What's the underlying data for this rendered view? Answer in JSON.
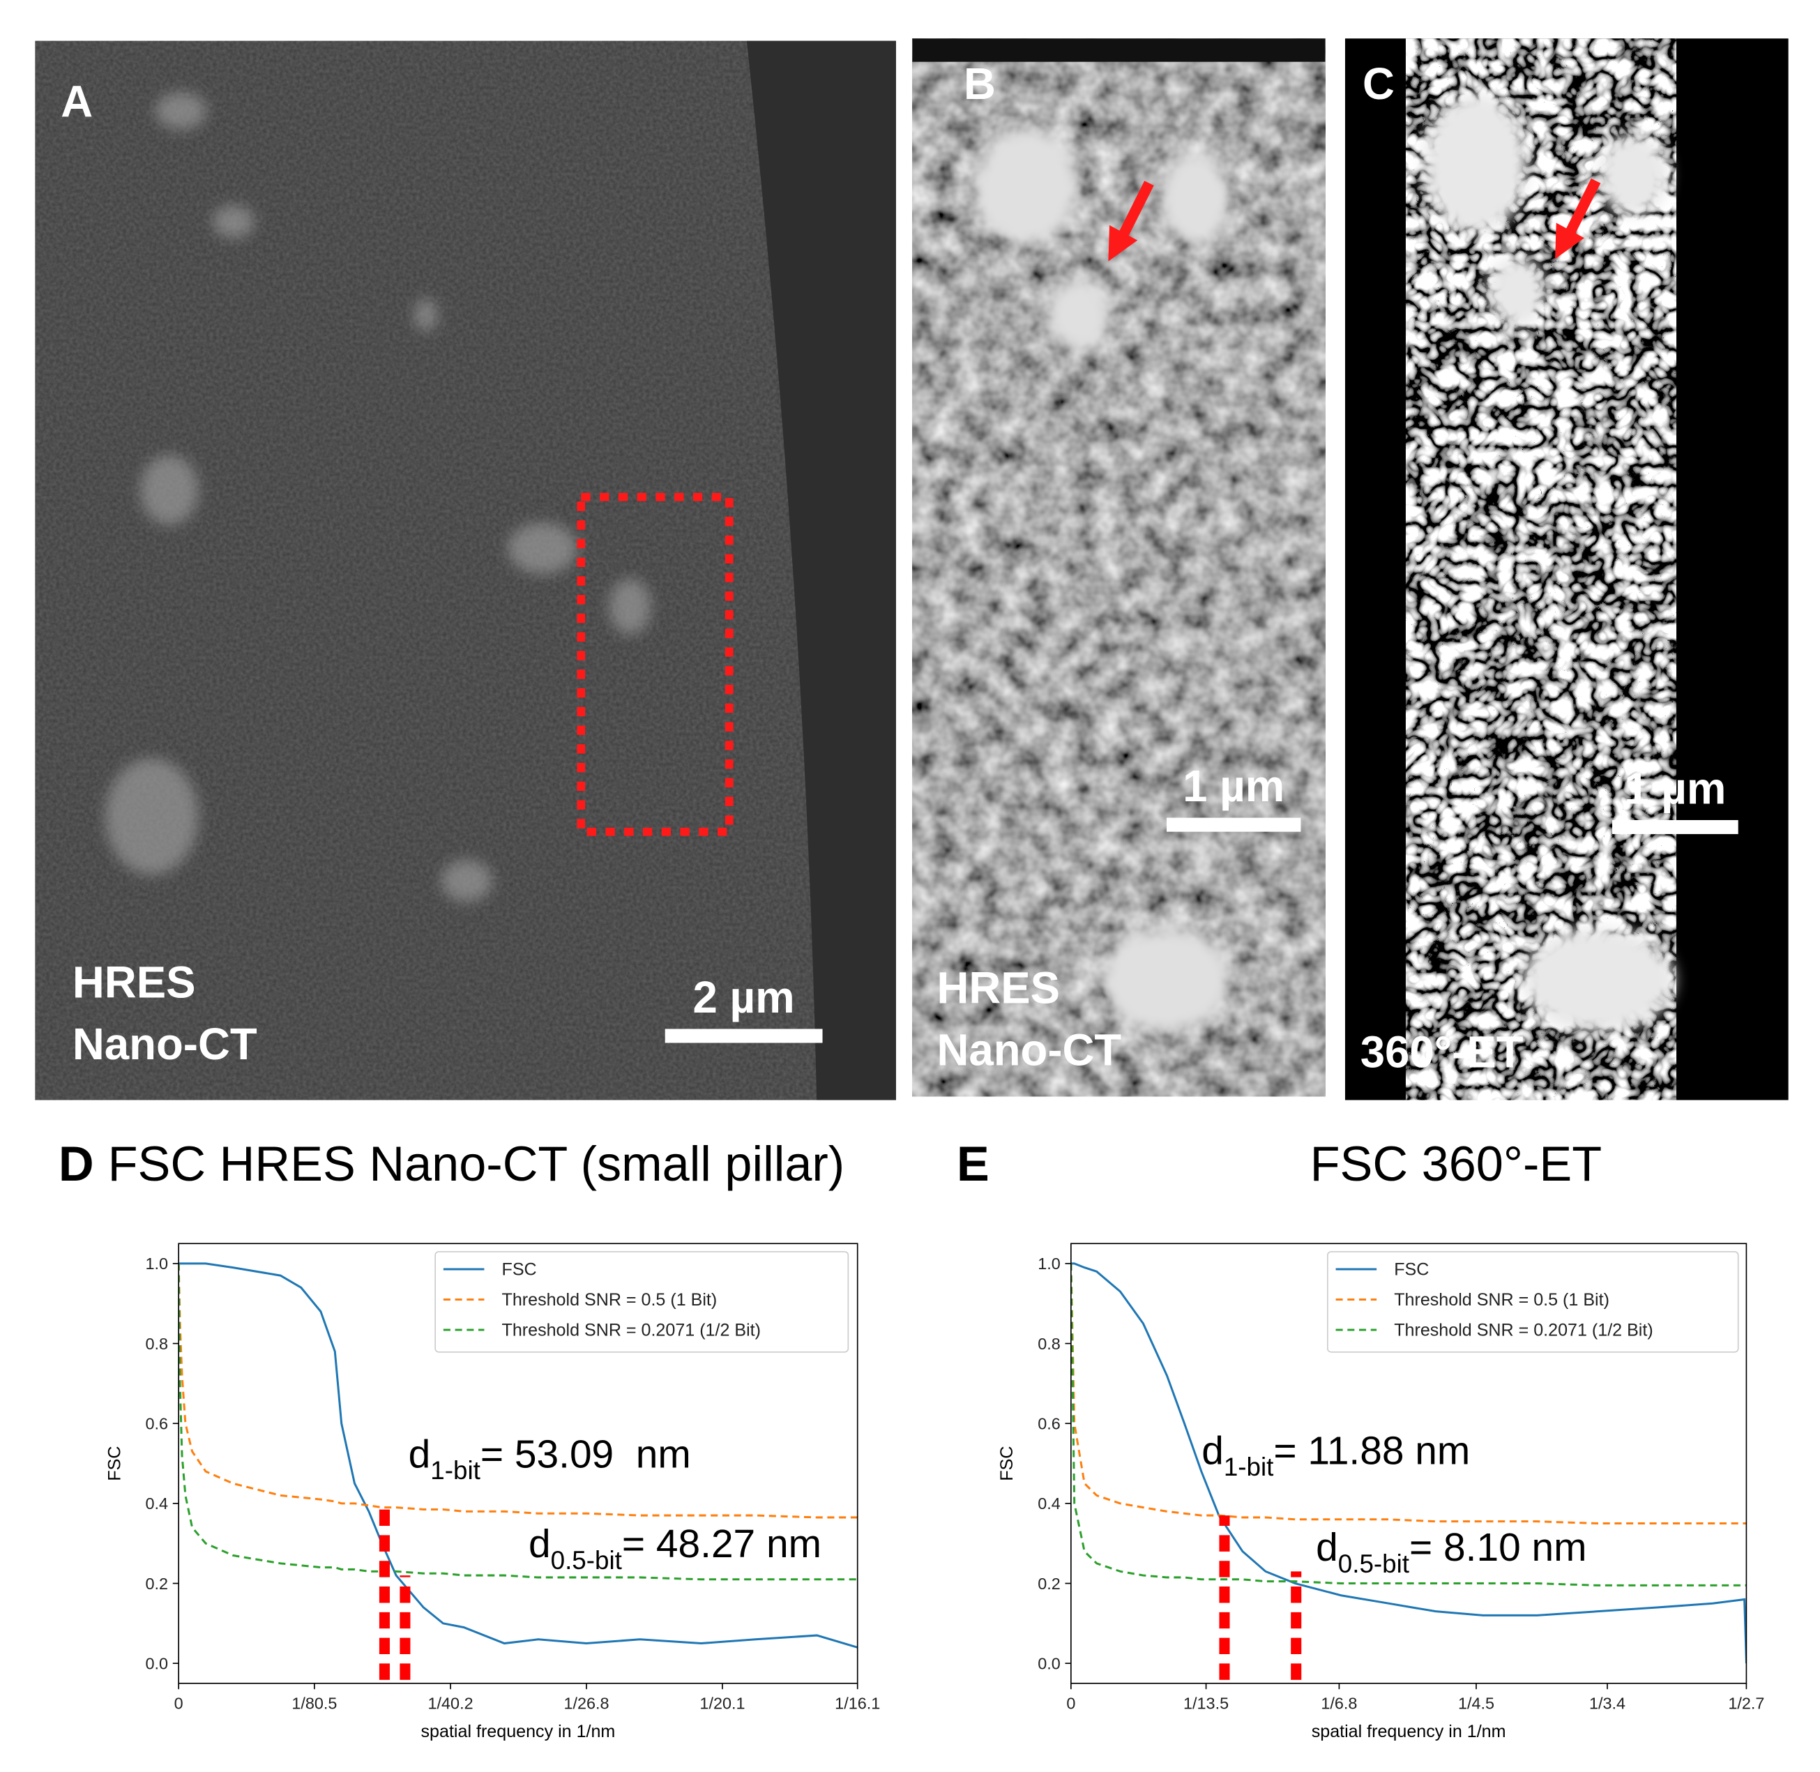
{
  "panels": [
    {
      "label": "A",
      "captions": [
        "HRES",
        "Nano-CT"
      ],
      "scale_bar": "2 µm"
    },
    {
      "label": "B",
      "captions": [
        "HRES",
        "Nano-CT"
      ],
      "scale_bar": "1 µm"
    },
    {
      "label": "C",
      "captions": [
        "360°-ET"
      ],
      "scale_bar": "1 µm"
    }
  ],
  "chart_data": [
    {
      "type": "line",
      "label": "D",
      "title": "FSC HRES Nano-CT (small pillar)",
      "x_label": "spatial frequency in 1/nm",
      "y_label": "FSC",
      "x": [
        0,
        0.000124,
        0.000311,
        0.000621,
        0.00124,
        0.00248,
        0.00497,
        0.00932,
        0.0112,
        0.013,
        0.0143,
        0.0149,
        0.0161,
        0.0174,
        0.0186,
        0.0199,
        0.0224,
        0.0242,
        0.0261,
        0.0298,
        0.0329,
        0.0373,
        0.0422,
        0.0478,
        0.0528,
        0.0584,
        0.0621
      ],
      "series": [
        {
          "name": "FSC",
          "color": "#1f77b4",
          "dashed": false,
          "values": [
            1.0,
            1.0,
            1.0,
            1.0,
            1.0,
            1.0,
            0.99,
            0.97,
            0.94,
            0.88,
            0.78,
            0.6,
            0.45,
            0.38,
            0.3,
            0.22,
            0.14,
            0.1,
            0.09,
            0.05,
            0.06,
            0.05,
            0.06,
            0.05,
            0.06,
            0.07,
            0.04
          ]
        },
        {
          "name": "Threshold SNR = 0.5 (1 Bit)",
          "color": "#ff7f0e",
          "dashed": true,
          "values": [
            1.0,
            0.85,
            0.72,
            0.6,
            0.53,
            0.48,
            0.45,
            0.42,
            0.415,
            0.41,
            0.405,
            0.4,
            0.4,
            0.395,
            0.39,
            0.39,
            0.385,
            0.385,
            0.38,
            0.38,
            0.375,
            0.375,
            0.37,
            0.37,
            0.37,
            0.365,
            0.365
          ]
        },
        {
          "name": "Threshold SNR = 0.2071 (1/2 Bit)",
          "color": "#2ca02c",
          "dashed": true,
          "values": [
            1.0,
            0.7,
            0.52,
            0.42,
            0.34,
            0.3,
            0.27,
            0.25,
            0.245,
            0.24,
            0.24,
            0.235,
            0.235,
            0.23,
            0.23,
            0.23,
            0.225,
            0.225,
            0.22,
            0.22,
            0.215,
            0.215,
            0.215,
            0.21,
            0.21,
            0.21,
            0.21
          ]
        }
      ],
      "cutoffs": [
        {
          "x": 0.01884,
          "y": 0.39
        },
        {
          "x": 0.02072,
          "y": 0.22
        }
      ],
      "cutoff_color": "#ff0000",
      "annotations": [
        {
          "symbol": "d",
          "subscript": "1-bit",
          "text": "= 53.09  nm"
        },
        {
          "symbol": "d",
          "subscript": "0.5-bit",
          "text": "= 48.27 nm"
        }
      ],
      "xlim": [
        0,
        0.062112
      ],
      "xticks": [
        0,
        {
          "value": 0.012422,
          "label": "1/80.5"
        },
        {
          "value": 0.024876,
          "label": "1/40.2"
        },
        {
          "value": 0.037313,
          "label": "1/26.8"
        },
        {
          "value": 0.049751,
          "label": "1/20.1"
        },
        {
          "value": 0.062112,
          "label": "1/16.1"
        }
      ],
      "ylim": [
        -0.05,
        1.05
      ],
      "yticks": [
        {
          "value": 0,
          "label": "0.0"
        },
        {
          "value": 0.2,
          "label": "0.2"
        },
        {
          "value": 0.4,
          "label": "0.4"
        },
        {
          "value": 0.6,
          "label": "0.6"
        },
        {
          "value": 0.8,
          "label": "0.8"
        },
        {
          "value": 1,
          "label": "1.0"
        }
      ],
      "legend": "upper right",
      "grid": false
    },
    {
      "type": "line",
      "label": "E",
      "title": "FSC 360°-ET",
      "x_label": "spatial frequency in 1/nm",
      "y_label": "FSC",
      "x": [
        0,
        0.00185,
        0.00741,
        0.0141,
        0.027,
        0.0396,
        0.0526,
        0.0622,
        0.0715,
        0.0811,
        0.0941,
        0.1067,
        0.123,
        0.1481,
        0.1741,
        0.2,
        0.2259,
        0.2556,
        0.2889,
        0.3222,
        0.3519,
        0.3693,
        0.3704
      ],
      "series": [
        {
          "name": "FSC",
          "color": "#1f77b4",
          "dashed": false,
          "values": [
            1.0,
            1.0,
            0.99,
            0.98,
            0.93,
            0.85,
            0.72,
            0.6,
            0.48,
            0.37,
            0.28,
            0.23,
            0.2,
            0.17,
            0.15,
            0.13,
            0.12,
            0.12,
            0.13,
            0.14,
            0.15,
            0.16,
            0.0
          ]
        },
        {
          "name": "Threshold SNR = 0.5 (1 Bit)",
          "color": "#ff7f0e",
          "dashed": true,
          "values": [
            1.0,
            0.6,
            0.45,
            0.42,
            0.4,
            0.39,
            0.38,
            0.375,
            0.37,
            0.37,
            0.365,
            0.365,
            0.36,
            0.36,
            0.36,
            0.355,
            0.355,
            0.355,
            0.35,
            0.35,
            0.35,
            0.35,
            0.35
          ]
        },
        {
          "name": "Threshold SNR = 0.2071 (1/2 Bit)",
          "color": "#2ca02c",
          "dashed": true,
          "values": [
            1.0,
            0.4,
            0.28,
            0.25,
            0.23,
            0.22,
            0.215,
            0.215,
            0.21,
            0.21,
            0.21,
            0.205,
            0.205,
            0.2,
            0.2,
            0.2,
            0.2,
            0.2,
            0.195,
            0.195,
            0.195,
            0.195,
            0.195
          ]
        }
      ],
      "cutoffs": [
        {
          "x": 0.08418,
          "y": 0.37
        },
        {
          "x": 0.12346,
          "y": 0.23
        }
      ],
      "cutoff_color": "#ff0000",
      "annotations": [
        {
          "symbol": "d",
          "subscript": "1-bit",
          "text": "= 11.88 nm"
        },
        {
          "symbol": "d",
          "subscript": "0.5-bit",
          "text": "= 8.10 nm"
        }
      ],
      "xlim": [
        0,
        0.37037
      ],
      "xticks": [
        0,
        {
          "value": 0.074074,
          "label": "1/13.5"
        },
        {
          "value": 0.147059,
          "label": "1/6.8"
        },
        {
          "value": 0.222222,
          "label": "1/4.5"
        },
        {
          "value": 0.294118,
          "label": "1/3.4"
        },
        {
          "value": 0.37037,
          "label": "1/2.7"
        }
      ],
      "ylim": [
        -0.05,
        1.05
      ],
      "yticks": [
        {
          "value": 0,
          "label": "0.0"
        },
        {
          "value": 0.2,
          "label": "0.2"
        },
        {
          "value": 0.4,
          "label": "0.4"
        },
        {
          "value": 0.6,
          "label": "0.6"
        },
        {
          "value": 0.8,
          "label": "0.8"
        },
        {
          "value": 1,
          "label": "1.0"
        }
      ],
      "legend": "upper right",
      "grid": false
    }
  ]
}
